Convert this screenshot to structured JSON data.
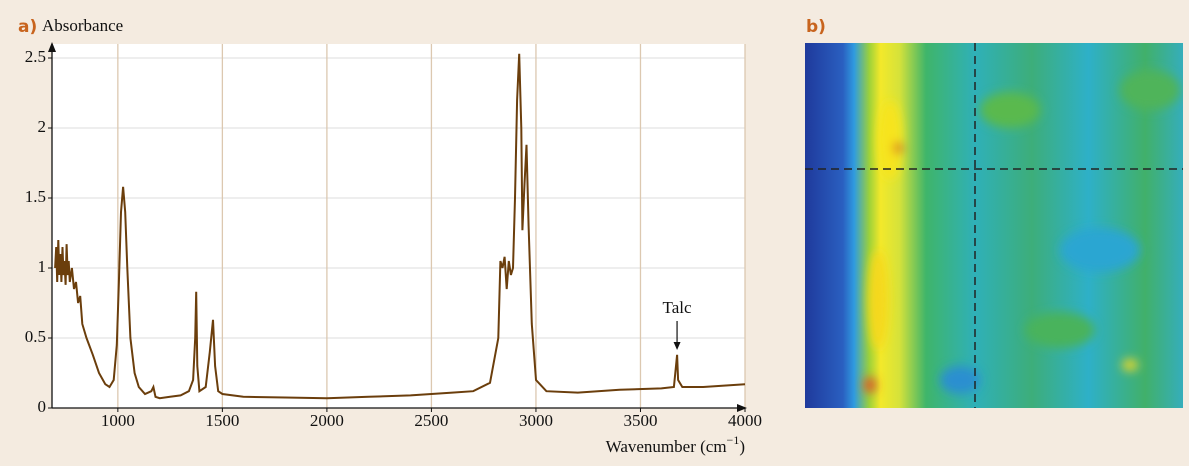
{
  "panel_a_label": "a)",
  "panel_b_label": "b)",
  "chart_data": {
    "type": "line",
    "y_label": "Absorbance",
    "x_label": {
      "text": "Wavenumber (cm",
      "sup": "−1",
      "end": ")"
    },
    "annotation": {
      "text": "Talc",
      "x": 3675
    },
    "color": "#6b3e0c",
    "xlim": [
      685,
      4000
    ],
    "ylim": [
      0,
      2.6
    ],
    "xticks": [
      1000,
      1500,
      2000,
      2500,
      3000,
      3500,
      4000
    ],
    "yticks": [
      0,
      0.5,
      1,
      1.5,
      2,
      2.5
    ],
    "grid": true,
    "x": [
      700,
      705,
      710,
      715,
      720,
      725,
      730,
      735,
      740,
      745,
      750,
      755,
      760,
      765,
      770,
      780,
      790,
      800,
      810,
      820,
      830,
      850,
      880,
      910,
      940,
      960,
      980,
      995,
      1005,
      1015,
      1025,
      1035,
      1045,
      1060,
      1080,
      1100,
      1130,
      1160,
      1170,
      1180,
      1200,
      1250,
      1300,
      1340,
      1360,
      1370,
      1375,
      1380,
      1390,
      1420,
      1440,
      1455,
      1465,
      1480,
      1500,
      1600,
      1800,
      2000,
      2200,
      2400,
      2600,
      2700,
      2780,
      2820,
      2830,
      2840,
      2850,
      2860,
      2870,
      2880,
      2890,
      2900,
      2910,
      2920,
      2930,
      2935,
      2945,
      2955,
      2965,
      2980,
      3000,
      3050,
      3200,
      3400,
      3600,
      3660,
      3670,
      3675,
      3680,
      3700,
      3800,
      3900,
      4000
    ],
    "values": [
      1.0,
      1.15,
      0.9,
      1.2,
      0.95,
      1.1,
      0.9,
      1.15,
      0.95,
      1.05,
      0.88,
      1.17,
      0.95,
      1.05,
      0.9,
      1.0,
      0.85,
      0.9,
      0.75,
      0.8,
      0.6,
      0.5,
      0.38,
      0.25,
      0.17,
      0.15,
      0.2,
      0.45,
      0.9,
      1.4,
      1.58,
      1.4,
      1.0,
      0.5,
      0.25,
      0.15,
      0.1,
      0.12,
      0.15,
      0.08,
      0.07,
      0.08,
      0.09,
      0.12,
      0.2,
      0.5,
      0.83,
      0.3,
      0.12,
      0.15,
      0.4,
      0.63,
      0.3,
      0.12,
      0.1,
      0.08,
      0.075,
      0.07,
      0.08,
      0.09,
      0.11,
      0.12,
      0.18,
      0.5,
      1.05,
      1.0,
      1.08,
      0.85,
      1.05,
      0.95,
      1.0,
      1.5,
      2.2,
      2.53,
      2.0,
      1.27,
      1.6,
      1.88,
      1.3,
      0.6,
      0.2,
      0.12,
      0.11,
      0.13,
      0.14,
      0.15,
      0.3,
      0.38,
      0.2,
      0.15,
      0.15,
      0.16,
      0.17
    ]
  }
}
